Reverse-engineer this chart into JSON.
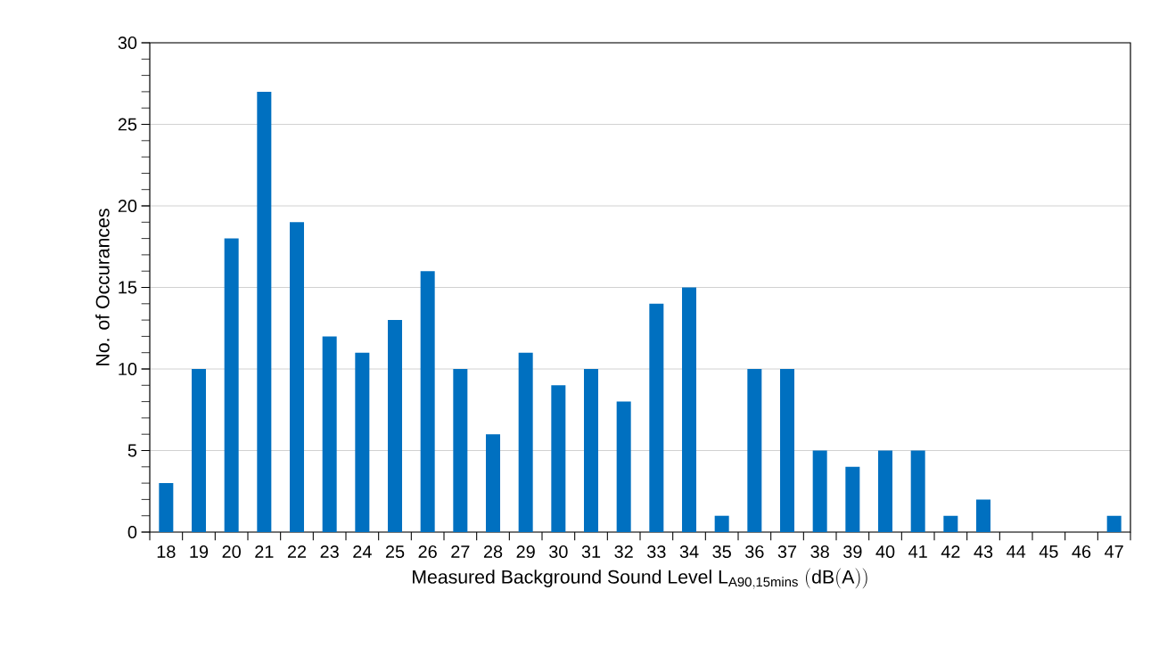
{
  "chart_data": {
    "type": "bar",
    "xlabel": "\\mathrm{Measured\\ Background\\ Sound\\ Level\\ L_{A90,15mins}\\ (dB(A))}",
    "ylabel": "No. of Occurances",
    "categories": [
      "18",
      "19",
      "20",
      "21",
      "22",
      "23",
      "24",
      "25",
      "26",
      "27",
      "28",
      "29",
      "30",
      "31",
      "32",
      "33",
      "34",
      "35",
      "36",
      "37",
      "38",
      "39",
      "40",
      "41",
      "42",
      "43",
      "44",
      "45",
      "46",
      "47"
    ],
    "values": [
      3,
      10,
      18,
      27,
      19,
      12,
      11,
      13,
      16,
      10,
      6,
      11,
      9,
      10,
      8,
      14,
      15,
      1,
      10,
      10,
      5,
      4,
      5,
      5,
      1,
      2,
      0,
      0,
      0,
      1
    ],
    "color": "#0070c0",
    "ylim": [
      0,
      30
    ],
    "yticks": [
      0,
      5,
      10,
      15,
      20,
      25,
      30
    ],
    "grid": "y"
  }
}
